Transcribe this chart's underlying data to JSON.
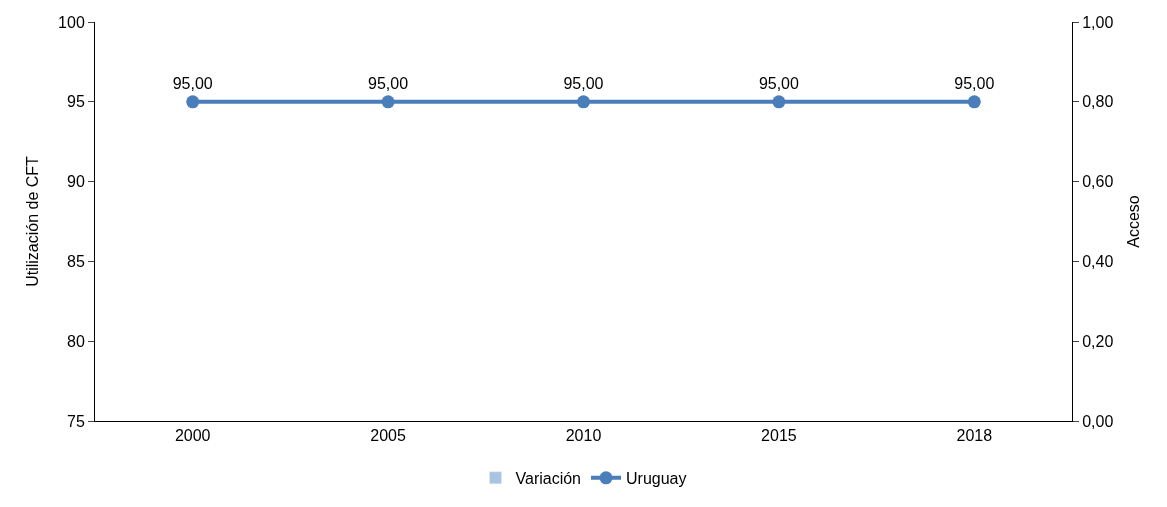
{
  "chart_data": {
    "type": "line",
    "ylabel": "Utilización de CFT",
    "y2label": "Acceso",
    "categories": [
      "2000",
      "2005",
      "2010",
      "2015",
      "2018"
    ],
    "series": [
      {
        "name": "Variación",
        "type": "bar",
        "axis": "y2",
        "color": "#a9c4e2",
        "values": [
          null,
          null,
          null,
          null,
          null
        ]
      },
      {
        "name": "Uruguay",
        "color": "#4a7ebb",
        "values": [
          95,
          95,
          95,
          95,
          95
        ],
        "value_labels": [
          "95,00",
          "95,00",
          "95,00",
          "95,00",
          "95,00"
        ]
      }
    ],
    "ylim": [
      75,
      100
    ],
    "yticks": [
      75,
      80,
      85,
      90,
      95,
      100
    ],
    "y2lim": [
      0,
      1
    ],
    "y2ticks": [
      {
        "value": 0,
        "label": "0,00"
      },
      {
        "value": 0.2,
        "label": "0,20"
      },
      {
        "value": 0.4,
        "label": "0,40"
      },
      {
        "value": 0.6,
        "label": "0,60"
      },
      {
        "value": 0.8,
        "label": "0,80"
      },
      {
        "value": 1,
        "label": "1,00"
      }
    ],
    "grid": false,
    "legend": "bottom",
    "marker": "circle",
    "line_style": "solid"
  }
}
